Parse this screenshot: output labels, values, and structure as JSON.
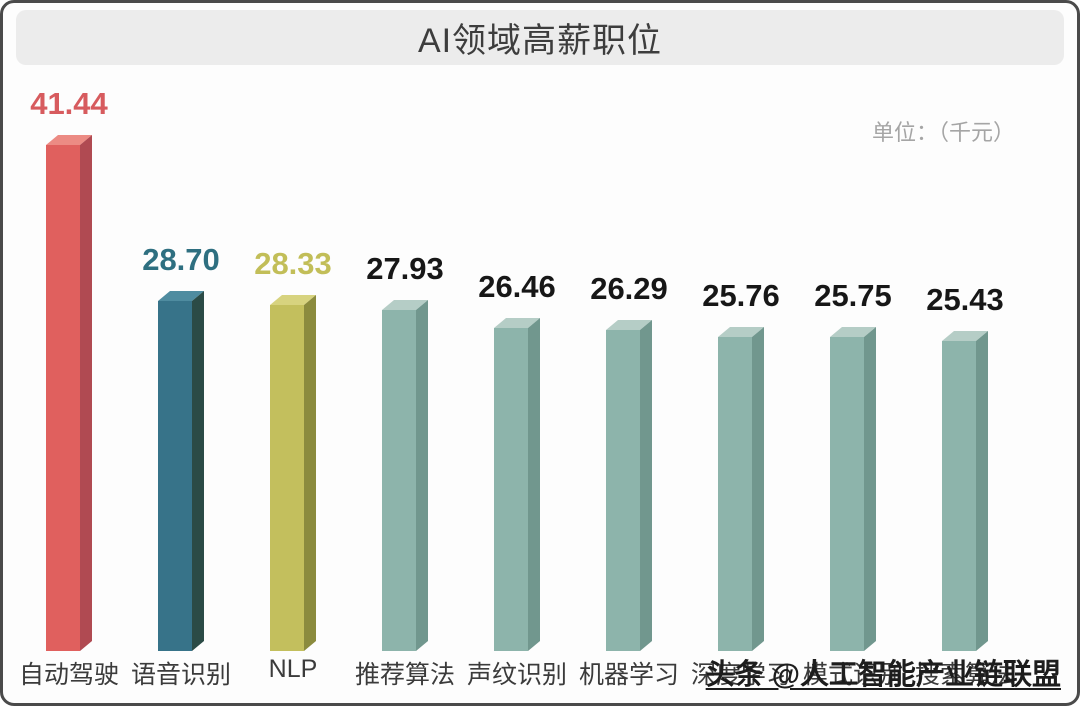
{
  "header": {
    "title": "AI领域高薪职位",
    "unit_label": "单位：（千元）"
  },
  "watermark": "头条 @人工智能产业链联盟",
  "chart_data": {
    "type": "bar",
    "style": "3d-column",
    "orientation": "vertical",
    "title": "AI领域高薪职位",
    "unit": "千元",
    "ylim": [
      0,
      45
    ],
    "gridlines": false,
    "legend": false,
    "categories": [
      "自动驾驶",
      "语音识别",
      "NLP",
      "推荐算法",
      "声纹识别",
      "机器学习",
      "深度学习",
      "模式识别",
      "搜索算法"
    ],
    "values": [
      41.44,
      28.7,
      28.33,
      27.93,
      26.46,
      26.29,
      25.76,
      25.75,
      25.43
    ],
    "palette": {
      "coral": {
        "front": "#E0605E",
        "side": "#B04A52",
        "top": "#EC8B84",
        "value_text": "#D75B5E"
      },
      "teal": {
        "front": "#377389",
        "side": "#2B4B46",
        "top": "#4F8CA0",
        "value_text": "#2E6F80"
      },
      "olive": {
        "front": "#C3BF5D",
        "side": "#8B8B3E",
        "top": "#D7D37F",
        "value_text": "#C2BE58"
      },
      "sage": {
        "front": "#8DB4AB",
        "side": "#71978E",
        "top": "#B5CDC6",
        "value_text": "#171717"
      }
    },
    "bars": [
      {
        "category": "自动驾驶",
        "value": 41.44,
        "label": "41.44",
        "color": "coral"
      },
      {
        "category": "语音识别",
        "value": 28.7,
        "label": "28.70",
        "color": "teal"
      },
      {
        "category": "NLP",
        "value": 28.33,
        "label": "28.33",
        "color": "olive"
      },
      {
        "category": "推荐算法",
        "value": 27.93,
        "label": "27.93",
        "color": "sage"
      },
      {
        "category": "声纹识别",
        "value": 26.46,
        "label": "26.46",
        "color": "sage"
      },
      {
        "category": "机器学习",
        "value": 26.29,
        "label": "26.29",
        "color": "sage"
      },
      {
        "category": "深度学习",
        "value": 25.76,
        "label": "25.76",
        "color": "sage"
      },
      {
        "category": "模式识别",
        "value": 25.75,
        "label": "25.75",
        "color": "sage"
      },
      {
        "category": "搜索算法",
        "value": 25.43,
        "label": "25.43",
        "color": "sage"
      }
    ]
  }
}
